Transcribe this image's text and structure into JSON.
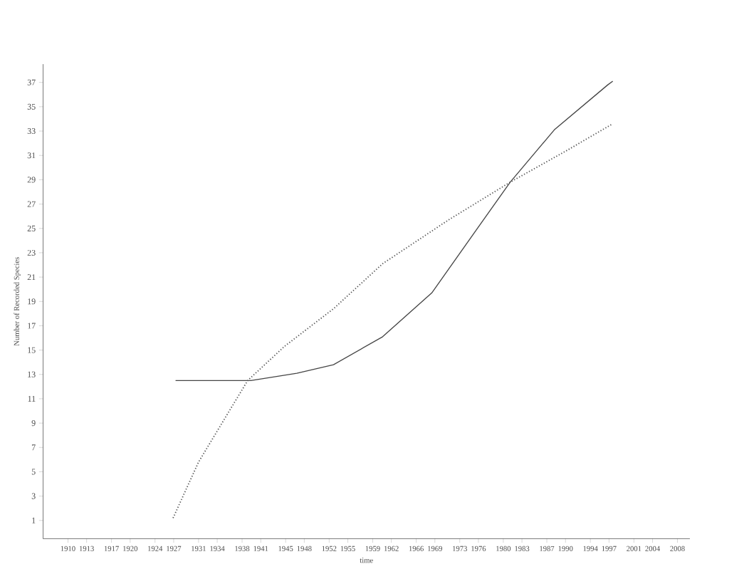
{
  "chart_data": {
    "type": "line",
    "xlabel": "time",
    "ylabel": "Number of Recorded Species",
    "xlim": [
      1906,
      2010
    ],
    "ylim": [
      -0.5,
      38.5
    ],
    "xticks": [
      1910,
      1913,
      1917,
      1920,
      1924,
      1927,
      1931,
      1934,
      1938,
      1941,
      1945,
      1948,
      1952,
      1955,
      1959,
      1962,
      1966,
      1969,
      1973,
      1976,
      1980,
      1983,
      1987,
      1990,
      1994,
      1997,
      2001,
      2004,
      2008
    ],
    "yticks": [
      1,
      3,
      5,
      7,
      9,
      11,
      13,
      15,
      17,
      19,
      21,
      23,
      25,
      27,
      29,
      31,
      33,
      35,
      37
    ],
    "grid": false,
    "marker": "none",
    "series": [
      {
        "color": "#444444",
        "line_style": "solid",
        "x": [
          1927.3,
          1939.4,
          1946.8,
          1952.7,
          1960.6,
          1968.5,
          1975.7,
          1981.1,
          1988.2,
          1996.8,
          1997.6
        ],
        "values": [
          12.5,
          12.5,
          13.1,
          13.8,
          16.1,
          19.7,
          24.9,
          28.8,
          33.1,
          36.8,
          37.1
        ]
      },
      {
        "color": "#555555",
        "line_style": "dotted",
        "x": [
          1926.9,
          1931,
          1935,
          1938.9,
          1944.8,
          1952.7,
          1960.6,
          1971.2,
          1981.1,
          1990.2,
          1997.6
        ],
        "values": [
          1.2,
          5.8,
          9.2,
          12.5,
          15.3,
          18.4,
          22.1,
          25.7,
          28.8,
          31.4,
          33.6
        ]
      }
    ]
  }
}
